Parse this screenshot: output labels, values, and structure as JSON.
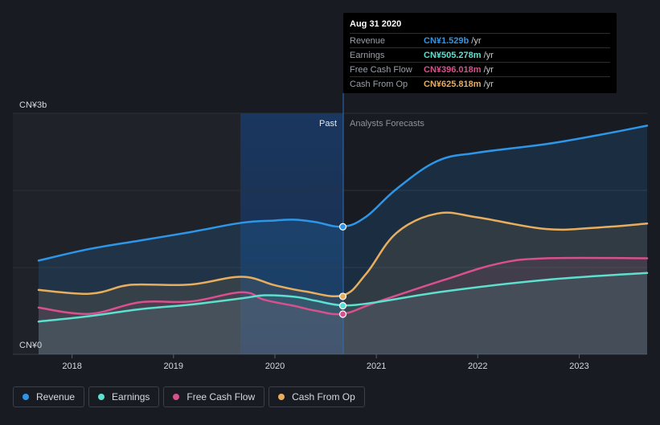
{
  "tooltip": {
    "date": "Aug 31 2020",
    "rows": [
      {
        "label": "Revenue",
        "value": "CN¥1.529b",
        "unit": "/yr",
        "color": "#2e96e8"
      },
      {
        "label": "Earnings",
        "value": "CN¥505.278m",
        "unit": "/yr",
        "color": "#5ee0cf"
      },
      {
        "label": "Free Cash Flow",
        "value": "CN¥396.018m",
        "unit": "/yr",
        "color": "#d9508e"
      },
      {
        "label": "Cash From Op",
        "value": "CN¥625.818m",
        "unit": "/yr",
        "color": "#e8ae5e"
      }
    ]
  },
  "chart_data": {
    "type": "line",
    "y_unit": "CN¥ billion",
    "ylim": [
      0,
      3
    ],
    "y_tick_labels": [
      "CN¥3b",
      "CN¥0"
    ],
    "x_tick_labels": [
      "2018",
      "2019",
      "2020",
      "2021",
      "2022",
      "2023"
    ],
    "x_range": [
      2017.67,
      2023.67
    ],
    "past_label": "Past",
    "forecast_label": "Analysts Forecasts",
    "past_band_start": 2019.67,
    "forecast_start": 2020.67,
    "series": [
      {
        "name": "Revenue",
        "color": "#2e96e8",
        "x": [
          2017.67,
          2018.17,
          2018.67,
          2019.17,
          2019.67,
          2020.0,
          2020.2,
          2020.4,
          2020.67,
          2020.9,
          2021.2,
          2021.6,
          2022.0,
          2022.67,
          2023.2,
          2023.67
        ],
        "y": [
          1.09,
          1.24,
          1.35,
          1.46,
          1.58,
          1.61,
          1.62,
          1.59,
          1.53,
          1.66,
          2.02,
          2.38,
          2.49,
          2.6,
          2.72,
          2.84
        ]
      },
      {
        "name": "Earnings",
        "color": "#5ee0cf",
        "x": [
          2017.67,
          2018.17,
          2018.67,
          2019.17,
          2019.67,
          2019.9,
          2020.2,
          2020.4,
          2020.67,
          2021.0,
          2021.67,
          2022.67,
          2023.67
        ],
        "y": [
          0.3,
          0.37,
          0.46,
          0.52,
          0.6,
          0.64,
          0.62,
          0.57,
          0.51,
          0.55,
          0.69,
          0.84,
          0.93
        ]
      },
      {
        "name": "Free Cash Flow",
        "color": "#d9508e",
        "x": [
          2017.67,
          2018.17,
          2018.67,
          2019.17,
          2019.67,
          2019.9,
          2020.2,
          2020.4,
          2020.67,
          2021.0,
          2021.67,
          2022.2,
          2022.67,
          2023.67
        ],
        "y": [
          0.48,
          0.4,
          0.55,
          0.56,
          0.68,
          0.58,
          0.5,
          0.44,
          0.4,
          0.55,
          0.84,
          1.05,
          1.12,
          1.12
        ]
      },
      {
        "name": "Cash From Op",
        "color": "#e8ae5e",
        "x": [
          2017.67,
          2018.17,
          2018.5,
          2018.67,
          2019.17,
          2019.67,
          2020.0,
          2020.3,
          2020.67,
          2020.9,
          2021.2,
          2021.6,
          2022.0,
          2022.67,
          2023.2,
          2023.67
        ],
        "y": [
          0.71,
          0.66,
          0.76,
          0.78,
          0.78,
          0.88,
          0.77,
          0.69,
          0.64,
          0.92,
          1.45,
          1.7,
          1.65,
          1.5,
          1.52,
          1.57
        ]
      }
    ],
    "highlight_values": {
      "x": 2020.67,
      "Revenue": 1.529,
      "Earnings": 0.505278,
      "Free Cash Flow": 0.396018,
      "Cash From Op": 0.625818
    }
  },
  "legend": [
    {
      "label": "Revenue",
      "color": "#2e96e8"
    },
    {
      "label": "Earnings",
      "color": "#5ee0cf"
    },
    {
      "label": "Free Cash Flow",
      "color": "#d9508e"
    },
    {
      "label": "Cash From Op",
      "color": "#e8ae5e"
    }
  ]
}
